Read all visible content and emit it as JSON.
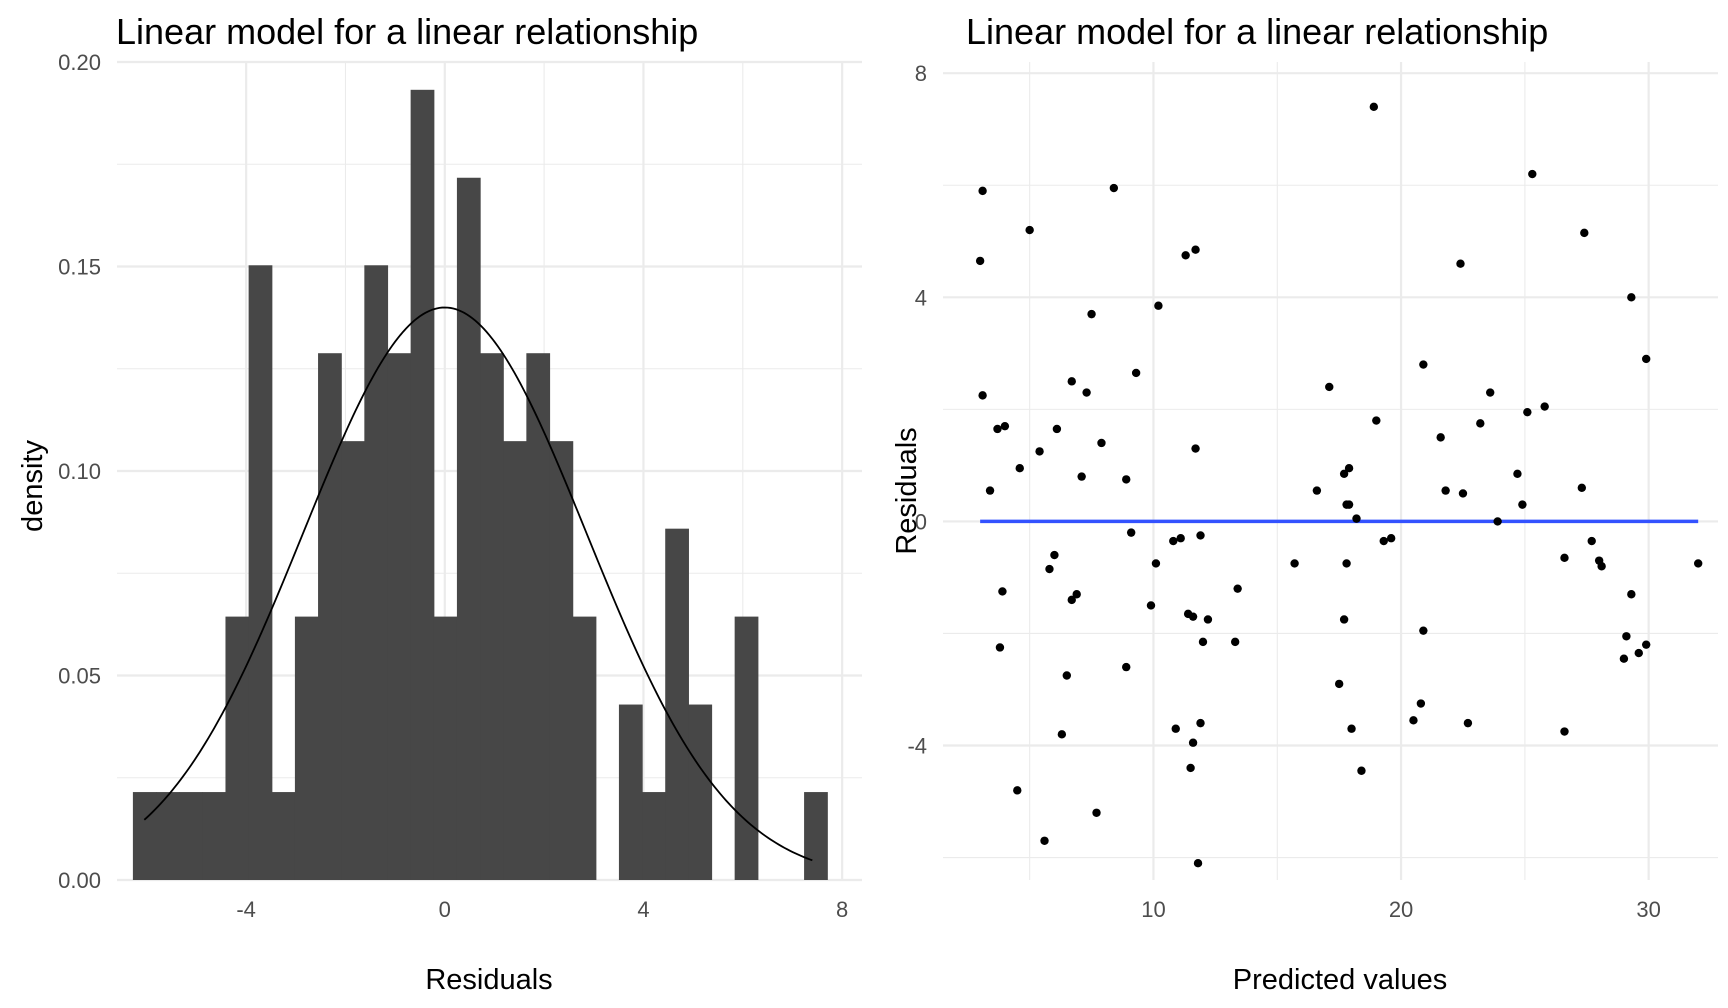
{
  "chart_data": [
    {
      "type": "histogram",
      "title": "Linear model for a linear relationship",
      "xlabel": "Residuals",
      "ylabel": "density",
      "xlim": [
        -6.6,
        8.4
      ],
      "ylim": [
        0,
        0.2
      ],
      "x_ticks": [
        -4,
        0,
        4,
        8
      ],
      "y_ticks": [
        0,
        0.05,
        0.1,
        0.15,
        0.2
      ],
      "x_tick_labels": [
        "-4",
        "0",
        "4",
        "8"
      ],
      "y_tick_labels": [
        "0.00",
        "0.05",
        "0.10",
        "0.15",
        "0.20"
      ],
      "grid": true,
      "bin_width": 0.466,
      "bin_start": -6.28,
      "densities": [
        0.0215,
        0.0215,
        0.0215,
        0.0215,
        0.0644,
        0.1503,
        0.0215,
        0.0644,
        0.1288,
        0.1073,
        0.1503,
        0.1288,
        0.1932,
        0.0644,
        0.1717,
        0.1288,
        0.1073,
        0.1288,
        0.1073,
        0.0644,
        0,
        0.0429,
        0.0215,
        0.0859,
        0.0429,
        0,
        0.0644,
        0,
        0,
        0.0215
      ],
      "bar_color": "#474747",
      "density_curve": {
        "type": "normal",
        "mean": 0.0,
        "sd": 2.85,
        "x_range": [
          -6.05,
          7.4
        ],
        "color": "#000000"
      }
    },
    {
      "type": "scatter",
      "title": "Linear model for a linear relationship",
      "xlabel": "Predicted values",
      "ylabel": "Residuals",
      "xlim": [
        1.5,
        32.8
      ],
      "ylim": [
        -6.4,
        8.2
      ],
      "x_ticks": [
        10,
        20,
        30
      ],
      "y_ticks": [
        -4,
        0,
        4,
        8
      ],
      "x_tick_labels": [
        "10",
        "20",
        "30"
      ],
      "y_tick_labels": [
        "-4",
        "0",
        "4",
        "8"
      ],
      "grid": true,
      "point_color": "#000000",
      "reference_line": {
        "y": 0,
        "x_range": [
          3.0,
          32.0
        ],
        "color": "#3352ff"
      },
      "points": [
        [
          3.0,
          4.65
        ],
        [
          3.1,
          5.9
        ],
        [
          3.1,
          2.25
        ],
        [
          3.4,
          0.55
        ],
        [
          3.7,
          1.65
        ],
        [
          3.8,
          -2.25
        ],
        [
          3.9,
          -1.25
        ],
        [
          4.0,
          1.7
        ],
        [
          4.5,
          -4.8
        ],
        [
          4.6,
          0.95
        ],
        [
          5.0,
          5.2
        ],
        [
          5.4,
          1.25
        ],
        [
          5.6,
          -5.7
        ],
        [
          5.8,
          -0.85
        ],
        [
          6.0,
          -0.6
        ],
        [
          6.1,
          1.65
        ],
        [
          6.3,
          -3.8
        ],
        [
          6.5,
          -2.75
        ],
        [
          6.7,
          -1.4
        ],
        [
          6.7,
          2.5
        ],
        [
          6.9,
          -1.3
        ],
        [
          7.1,
          0.8
        ],
        [
          7.3,
          2.3
        ],
        [
          7.5,
          3.7
        ],
        [
          7.7,
          -5.2
        ],
        [
          7.9,
          1.4
        ],
        [
          8.4,
          5.95
        ],
        [
          8.9,
          0.75
        ],
        [
          8.9,
          -2.6
        ],
        [
          9.1,
          -0.2
        ],
        [
          9.3,
          2.65
        ],
        [
          9.9,
          -1.5
        ],
        [
          10.1,
          -0.75
        ],
        [
          10.2,
          3.85
        ],
        [
          10.8,
          -0.35
        ],
        [
          10.9,
          -3.7
        ],
        [
          11.1,
          -0.3
        ],
        [
          11.3,
          4.75
        ],
        [
          11.4,
          -1.65
        ],
        [
          11.5,
          -4.4
        ],
        [
          11.6,
          -3.95
        ],
        [
          11.6,
          -1.7
        ],
        [
          11.7,
          1.3
        ],
        [
          11.7,
          4.85
        ],
        [
          11.8,
          -6.1
        ],
        [
          11.9,
          -0.25
        ],
        [
          11.9,
          -3.6
        ],
        [
          12.0,
          -2.15
        ],
        [
          12.2,
          -1.75
        ],
        [
          13.3,
          -2.15
        ],
        [
          13.4,
          -1.2
        ],
        [
          15.7,
          -0.75
        ],
        [
          16.6,
          0.55
        ],
        [
          17.1,
          2.4
        ],
        [
          17.5,
          -2.9
        ],
        [
          17.7,
          0.85
        ],
        [
          17.7,
          -1.75
        ],
        [
          17.8,
          0.3
        ],
        [
          17.8,
          -0.75
        ],
        [
          17.9,
          0.3
        ],
        [
          17.9,
          0.95
        ],
        [
          18.0,
          -3.7
        ],
        [
          18.2,
          0.05
        ],
        [
          18.4,
          -4.45
        ],
        [
          19.0,
          1.8
        ],
        [
          19.3,
          -0.35
        ],
        [
          19.6,
          -0.3
        ],
        [
          20.5,
          -3.55
        ],
        [
          20.8,
          -3.25
        ],
        [
          20.9,
          2.8
        ],
        [
          20.9,
          -1.95
        ],
        [
          21.6,
          1.5
        ],
        [
          21.8,
          0.55
        ],
        [
          22.4,
          4.6
        ],
        [
          22.5,
          0.5
        ],
        [
          22.7,
          -3.6
        ],
        [
          23.2,
          1.75
        ],
        [
          23.6,
          2.3
        ],
        [
          23.9,
          0.0
        ],
        [
          24.7,
          0.85
        ],
        [
          24.9,
          0.3
        ],
        [
          25.1,
          1.95
        ],
        [
          25.3,
          6.2
        ],
        [
          25.8,
          2.05
        ],
        [
          26.6,
          -0.65
        ],
        [
          26.6,
          -3.75
        ],
        [
          27.3,
          0.6
        ],
        [
          27.4,
          5.15
        ],
        [
          27.7,
          -0.35
        ],
        [
          28.0,
          -0.7
        ],
        [
          28.1,
          -0.8
        ],
        [
          29.0,
          -2.45
        ],
        [
          29.1,
          -2.05
        ],
        [
          29.3,
          4.0
        ],
        [
          29.3,
          -1.3
        ],
        [
          29.6,
          -2.35
        ],
        [
          29.9,
          2.9
        ],
        [
          29.9,
          -2.2
        ],
        [
          32.0,
          -0.75
        ],
        [
          18.9,
          7.4
        ]
      ]
    }
  ]
}
